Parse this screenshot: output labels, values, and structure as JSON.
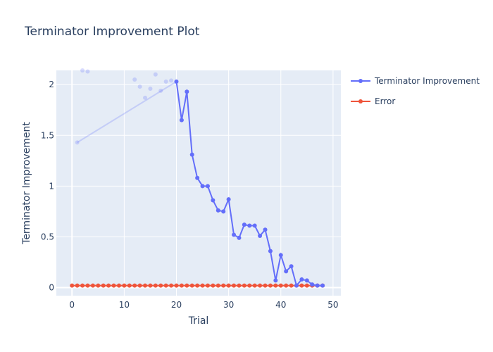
{
  "chart_data": {
    "type": "line",
    "title": "Terminator Improvement Plot",
    "xlabel": "Trial",
    "ylabel": "Terminator Improvement",
    "xlim": [
      -3,
      51.5
    ],
    "ylim": [
      -0.08,
      2.14
    ],
    "xticks": [
      0,
      10,
      20,
      30,
      40,
      50
    ],
    "yticks": [
      0,
      0.5,
      1,
      1.5,
      2
    ],
    "ytick_labels": [
      "0",
      "0.5",
      "1",
      "1.5",
      "2"
    ],
    "grid": true,
    "legend_position": "top-right",
    "series": [
      {
        "name": "Terminator Improvement",
        "color": "#636efa",
        "mode": "lines+markers",
        "points": [
          [
            20,
            2.03
          ],
          [
            21,
            1.65
          ],
          [
            22,
            1.93
          ],
          [
            23,
            1.31
          ],
          [
            24,
            1.08
          ],
          [
            25,
            1.0
          ],
          [
            26,
            1.0
          ],
          [
            27,
            0.86
          ],
          [
            28,
            0.76
          ],
          [
            29,
            0.75
          ],
          [
            30,
            0.87
          ],
          [
            31,
            0.52
          ],
          [
            32,
            0.49
          ],
          [
            33,
            0.62
          ],
          [
            34,
            0.61
          ],
          [
            35,
            0.61
          ],
          [
            36,
            0.51
          ],
          [
            37,
            0.57
          ],
          [
            38,
            0.36
          ],
          [
            39,
            0.07
          ],
          [
            40,
            0.32
          ],
          [
            41,
            0.16
          ],
          [
            42,
            0.21
          ],
          [
            43,
            0.02
          ],
          [
            44,
            0.08
          ],
          [
            45,
            0.07
          ],
          [
            46,
            0.03
          ],
          [
            47,
            0.02
          ],
          [
            48,
            0.02
          ]
        ]
      },
      {
        "name": "Error",
        "color": "#ef553b",
        "mode": "lines+markers",
        "points": [
          [
            0,
            0.02
          ],
          [
            1,
            0.02
          ],
          [
            2,
            0.02
          ],
          [
            3,
            0.02
          ],
          [
            4,
            0.02
          ],
          [
            5,
            0.02
          ],
          [
            6,
            0.02
          ],
          [
            7,
            0.02
          ],
          [
            8,
            0.02
          ],
          [
            9,
            0.02
          ],
          [
            10,
            0.02
          ],
          [
            11,
            0.02
          ],
          [
            12,
            0.02
          ],
          [
            13,
            0.02
          ],
          [
            14,
            0.02
          ],
          [
            15,
            0.02
          ],
          [
            16,
            0.02
          ],
          [
            17,
            0.02
          ],
          [
            18,
            0.02
          ],
          [
            19,
            0.02
          ],
          [
            20,
            0.02
          ],
          [
            21,
            0.02
          ],
          [
            22,
            0.02
          ],
          [
            23,
            0.02
          ],
          [
            24,
            0.02
          ],
          [
            25,
            0.02
          ],
          [
            26,
            0.02
          ],
          [
            27,
            0.02
          ],
          [
            28,
            0.02
          ],
          [
            29,
            0.02
          ],
          [
            30,
            0.02
          ],
          [
            31,
            0.02
          ],
          [
            32,
            0.02
          ],
          [
            33,
            0.02
          ],
          [
            34,
            0.02
          ],
          [
            35,
            0.02
          ],
          [
            36,
            0.02
          ],
          [
            37,
            0.02
          ],
          [
            38,
            0.02
          ],
          [
            39,
            0.02
          ],
          [
            40,
            0.02
          ],
          [
            41,
            0.02
          ],
          [
            42,
            0.02
          ],
          [
            43,
            0.02
          ],
          [
            44,
            0.02
          ],
          [
            45,
            0.02
          ],
          [
            46,
            0.02
          ],
          [
            47,
            0.02
          ],
          [
            48,
            0.02
          ]
        ]
      }
    ],
    "faded_points": {
      "color": "#636efa",
      "opacity": 0.25,
      "line": [
        [
          1,
          1.43
        ],
        [
          20,
          2.03
        ]
      ],
      "markers": [
        [
          1,
          1.43
        ],
        [
          2,
          2.14
        ],
        [
          3,
          2.13
        ],
        [
          12,
          2.05
        ],
        [
          13,
          1.98
        ],
        [
          14,
          1.87
        ],
        [
          15,
          1.96
        ],
        [
          16,
          2.1
        ],
        [
          17,
          1.94
        ],
        [
          18,
          2.03
        ],
        [
          19,
          2.04
        ]
      ]
    }
  }
}
